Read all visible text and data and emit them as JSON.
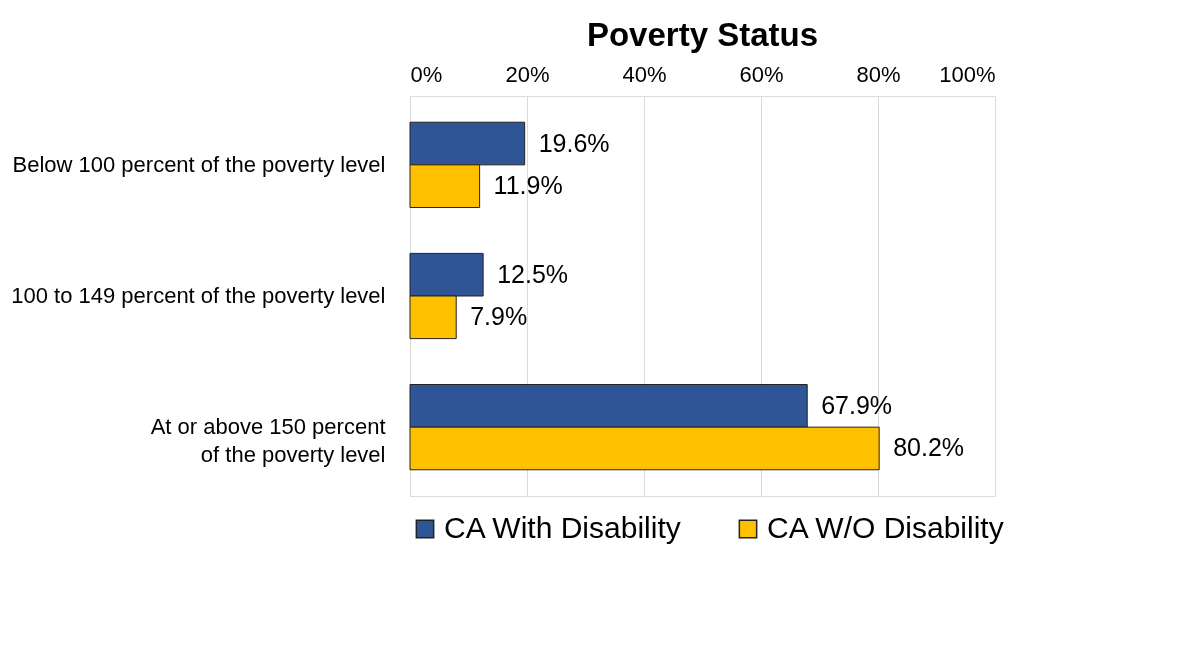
{
  "chart_data": {
    "type": "bar",
    "orientation": "horizontal",
    "title": "Poverty Status",
    "categories": [
      "Below 100 percent of the poverty level",
      "100 to 149 percent of the poverty level",
      "At or above 150 percent\nof the poverty level"
    ],
    "series": [
      {
        "name": "CA With Disability",
        "color": "#2f5597",
        "values": [
          19.6,
          12.5,
          67.9
        ],
        "value_labels": [
          "19.6%",
          "12.5%",
          "67.9%"
        ]
      },
      {
        "name": "CA W/O Disability",
        "color": "#ffc000",
        "values": [
          11.9,
          7.9,
          80.2
        ],
        "value_labels": [
          "11.9%",
          "7.9%",
          "80.2%"
        ]
      }
    ],
    "xlim": [
      0,
      100
    ],
    "xticks": [
      {
        "value": 0,
        "label": "0%"
      },
      {
        "value": 20,
        "label": "20%"
      },
      {
        "value": 40,
        "label": "40%"
      },
      {
        "value": 60,
        "label": "60%"
      },
      {
        "value": 80,
        "label": "80%"
      },
      {
        "value": 100,
        "label": "100%"
      }
    ],
    "grid": "x",
    "legend": "bottom"
  }
}
